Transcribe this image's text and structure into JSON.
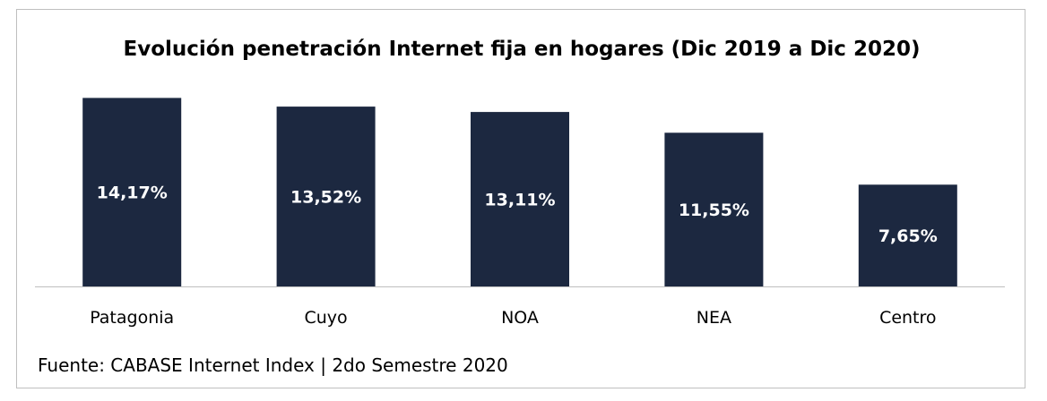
{
  "chart_data": {
    "type": "bar",
    "title": "Evolución penetración Internet fija en hogares (Dic 2019 a Dic 2020)",
    "categories": [
      "Patagonia",
      "Cuyo",
      "NOA",
      "NEA",
      "Centro"
    ],
    "values": [
      14.17,
      13.52,
      13.11,
      11.55,
      7.65
    ],
    "data_labels": [
      "14,17%",
      "13,52%",
      "13,11%",
      "11,55%",
      "7,65%"
    ],
    "ylim": [
      0,
      14.6
    ],
    "bar_color": "#1c2840",
    "label_color": "#ffffff",
    "axis_color": "#bfbfbf",
    "grid": false,
    "legend": "none"
  },
  "source": "Fuente: CABASE Internet Index | 2do Semestre 2020"
}
